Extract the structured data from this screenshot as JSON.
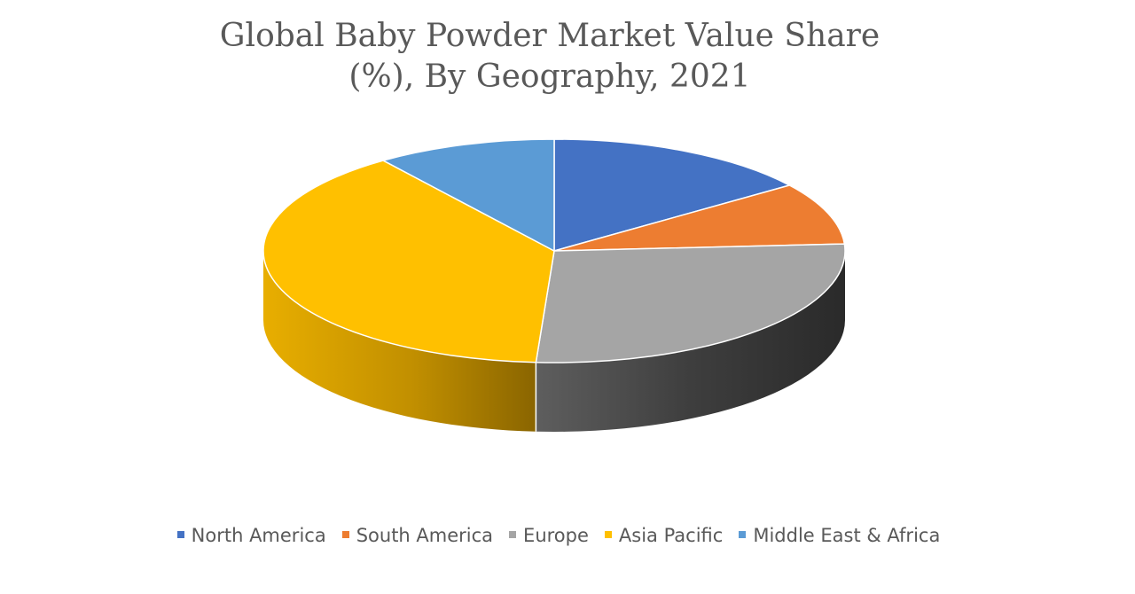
{
  "chart_data": {
    "type": "pie",
    "title_lines": [
      "Global Baby Powder  Market Value Share",
      "(%), By Geography, 2021"
    ],
    "categories": [
      "North America",
      "South America",
      "Europe",
      "Asia Pacific",
      "Middle East & Africa"
    ],
    "values": [
      15,
      9,
      27,
      39,
      10
    ],
    "colors": [
      "#4472C4",
      "#ED7D31",
      "#A5A5A5",
      "#FFC000",
      "#5B9BD5"
    ],
    "three_d": true,
    "legend_position": "bottom"
  }
}
